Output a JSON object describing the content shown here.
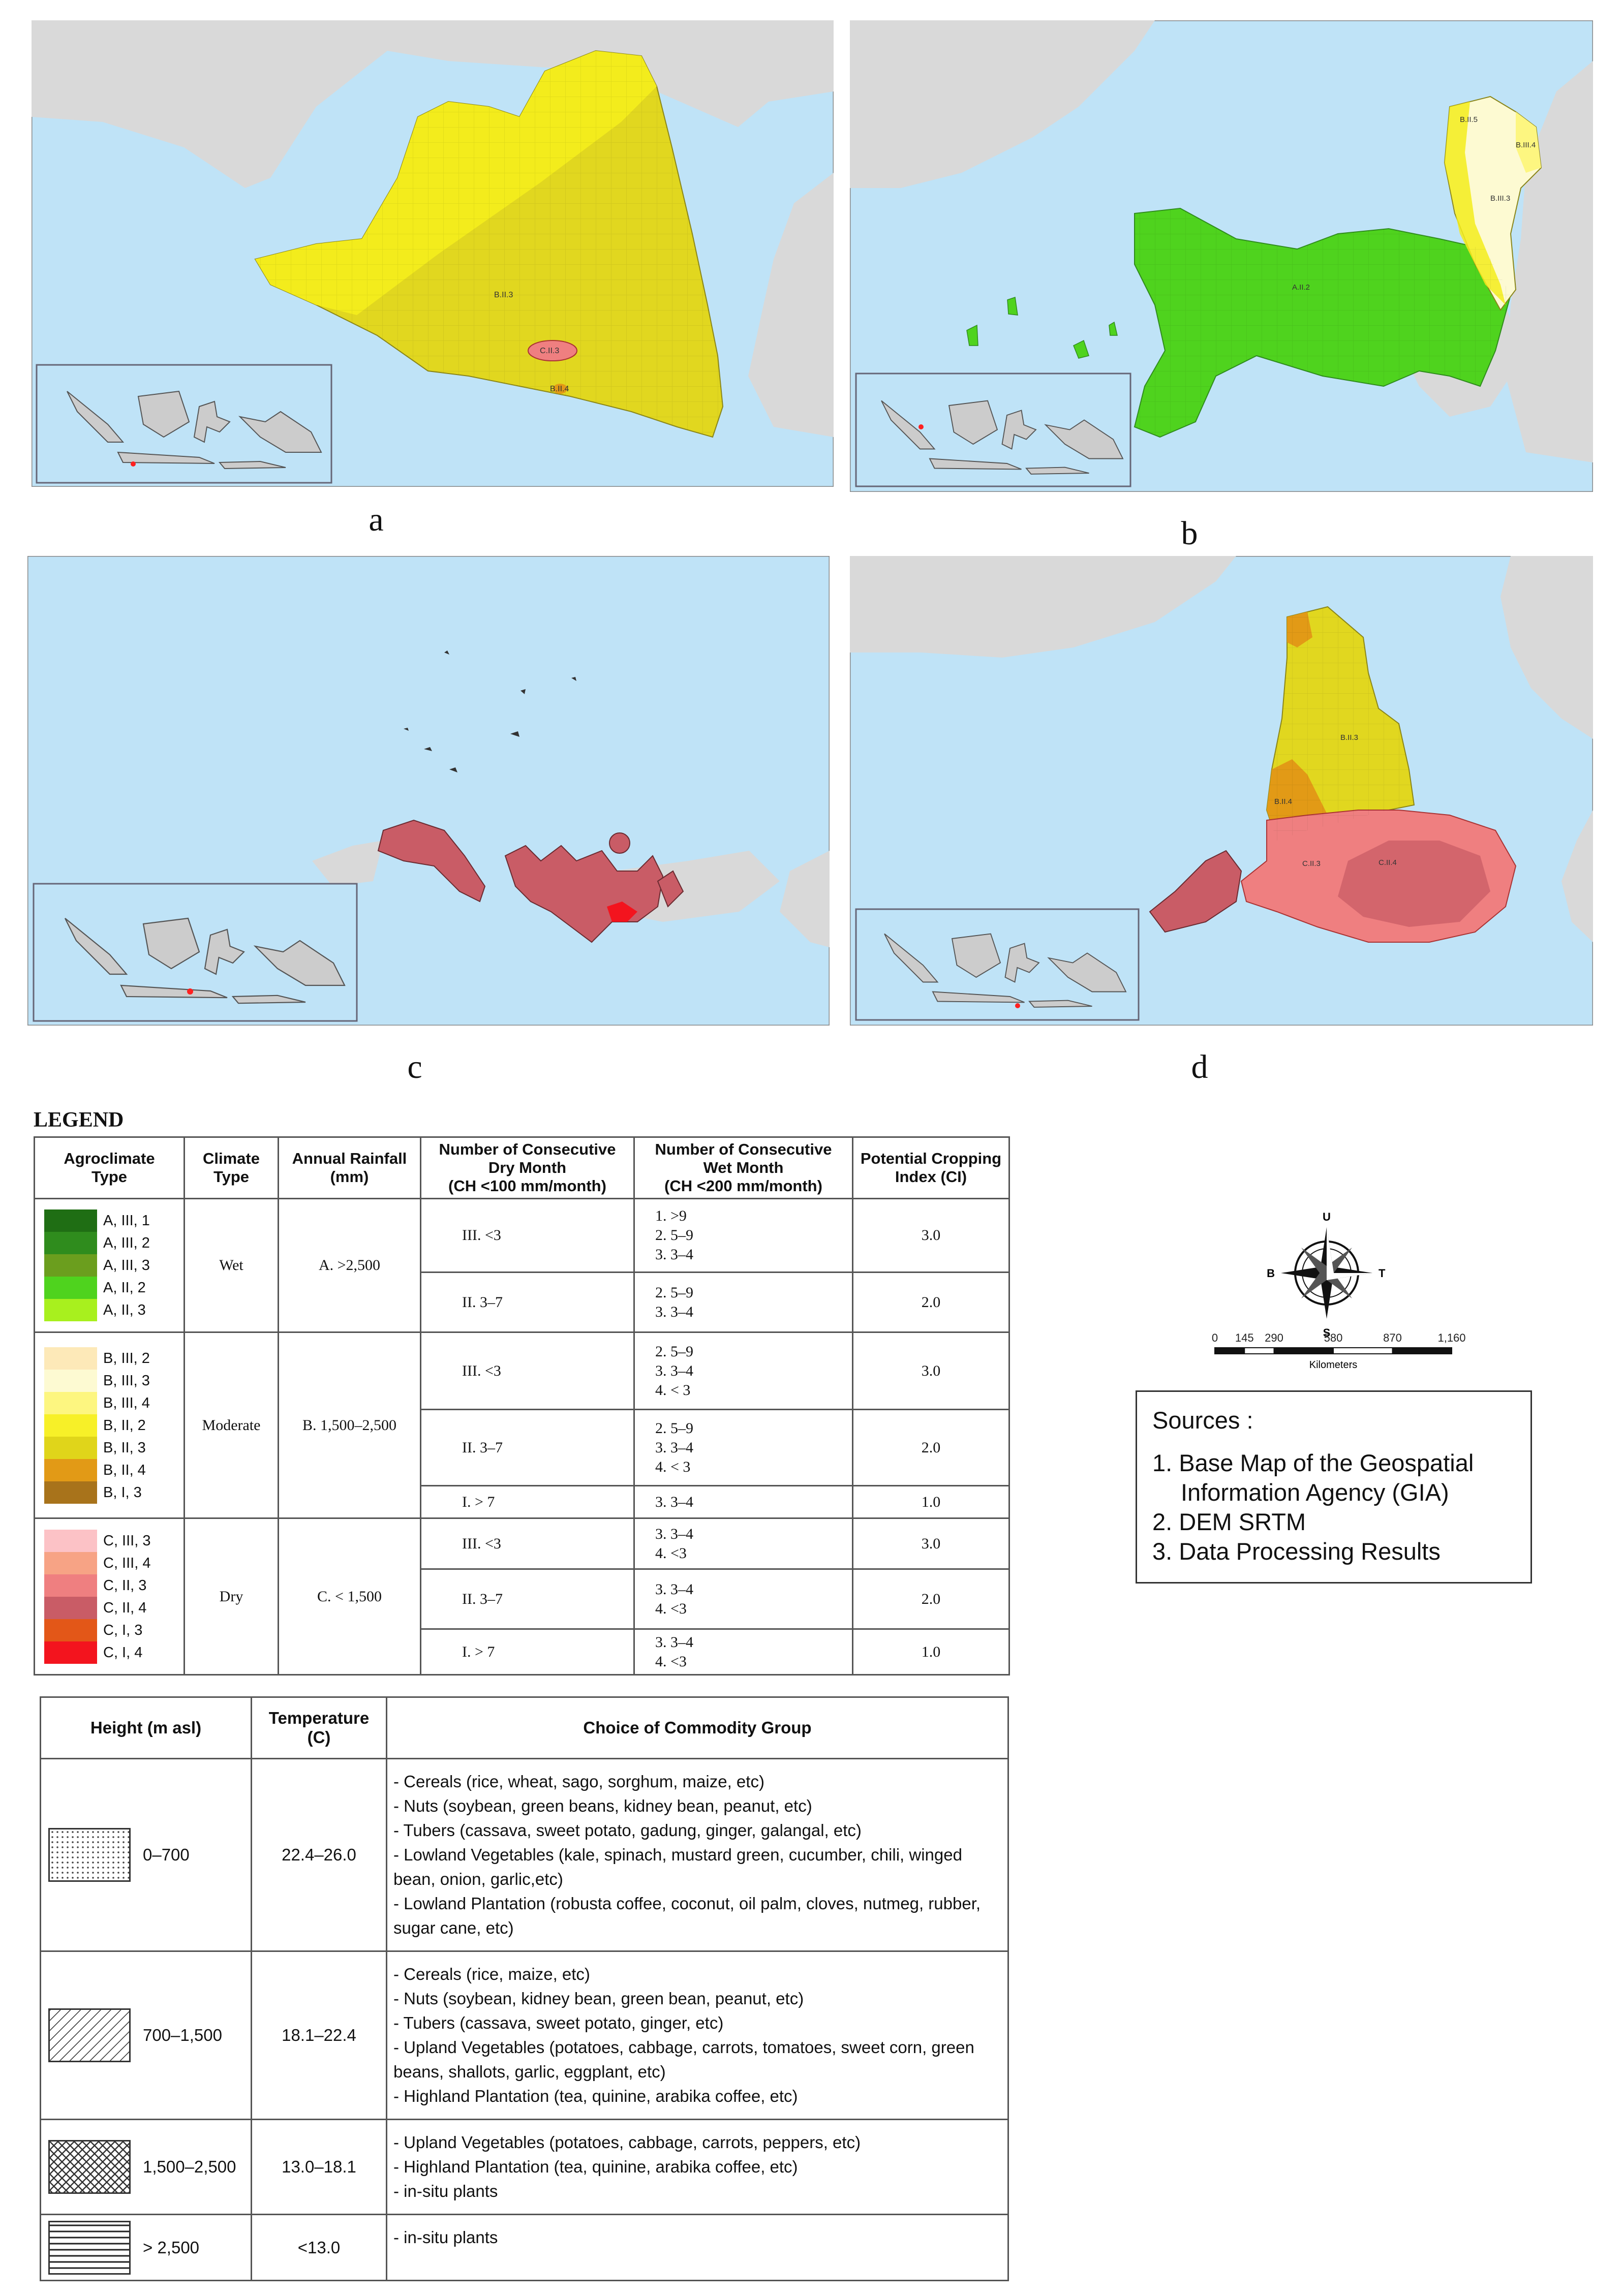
{
  "panels": [
    {
      "letter": "a",
      "labels": [
        "B.II.3",
        "C.II.3",
        "B.II.4"
      ]
    },
    {
      "letter": "b",
      "labels": [
        "B.II.5",
        "B.III.4",
        "B.III.3",
        "A.II.2"
      ]
    },
    {
      "letter": "c",
      "labels": []
    },
    {
      "letter": "d",
      "labels": [
        "B.II.3",
        "B.II.4",
        "C.II.3",
        "C.II.4"
      ]
    }
  ],
  "legend_title": "LEGEND",
  "agro_table": {
    "headers": {
      "agro": [
        "Agroclimate",
        "Type"
      ],
      "climate": [
        "Climate",
        "Type"
      ],
      "rain": [
        "Annual Rainfall",
        "(mm)"
      ],
      "dry": [
        "Number of Consecutive",
        "Dry Month",
        "(CH <100 mm/month)"
      ],
      "wet": [
        "Number of Consecutive",
        "Wet Month",
        "(CH <200 mm/month)"
      ],
      "ci": [
        "Potential Cropping",
        "Index (CI)"
      ]
    },
    "groups": [
      {
        "climate": "Wet",
        "rainfall": "A. >2,500",
        "swatches": [
          {
            "label": "A, III, 1",
            "color": "#1f6e14"
          },
          {
            "label": "A, III, 2",
            "color": "#2f8c1d"
          },
          {
            "label": "A, III, 3",
            "color": "#6b9e1e"
          },
          {
            "label": "A, II, 2",
            "color": "#4fd31e"
          },
          {
            "label": "A, II, 3",
            "color": "#a8f01e"
          }
        ],
        "rows": [
          {
            "dry": "III. <3",
            "wet": [
              "1. >9",
              "2. 5–9",
              "3. 3–4"
            ],
            "ci": "3.0"
          },
          {
            "dry": "II. 3–7",
            "wet": [
              "2. 5–9",
              "3. 3–4"
            ],
            "ci": "2.0"
          }
        ]
      },
      {
        "climate": "Moderate",
        "rainfall": "B. 1,500–2,500",
        "swatches": [
          {
            "label": "B, III, 2",
            "color": "#fde9b8"
          },
          {
            "label": "B, III, 3",
            "color": "#fdfad2"
          },
          {
            "label": "B, III, 4",
            "color": "#fdf680"
          },
          {
            "label": "B, II, 2",
            "color": "#f7f028"
          },
          {
            "label": "B, II, 3",
            "color": "#e0d51a"
          },
          {
            "label": "B, II, 4",
            "color": "#e29a16"
          },
          {
            "label": "B, I, 3",
            "color": "#a8731b"
          }
        ],
        "rows": [
          {
            "dry": "III. <3",
            "wet": [
              "2. 5–9",
              "3. 3–4",
              "4. < 3"
            ],
            "ci": "3.0"
          },
          {
            "dry": "II. 3–7",
            "wet": [
              "2. 5–9",
              "3. 3–4",
              "4. < 3"
            ],
            "ci": "2.0"
          },
          {
            "dry": "I. > 7",
            "wet": [
              "3. 3–4"
            ],
            "ci": "1.0"
          }
        ]
      },
      {
        "climate": "Dry",
        "rainfall": "C. < 1,500",
        "swatches": [
          {
            "label": "C, III, 3",
            "color": "#fcc2c6"
          },
          {
            "label": "C, III, 4",
            "color": "#f7a385"
          },
          {
            "label": "C, II, 3",
            "color": "#ef7f80"
          },
          {
            "label": "C, II, 4",
            "color": "#c95c66"
          },
          {
            "label": "C, I, 3",
            "color": "#e35718"
          },
          {
            "label": "C, I, 4",
            "color": "#f3141e"
          }
        ],
        "rows": [
          {
            "dry": "III. <3",
            "wet": [
              "3. 3–4",
              "4. <3"
            ],
            "ci": "3.0"
          },
          {
            "dry": "II. 3–7",
            "wet": [
              "3. 3–4",
              "4. <3"
            ],
            "ci": "2.0"
          },
          {
            "dry": "I. > 7",
            "wet": [
              "3. 3–4",
              "4. <3"
            ],
            "ci": "1.0"
          }
        ]
      }
    ]
  },
  "commodity_table": {
    "headers": {
      "height": "Height (m asl)",
      "temp": [
        "Temperature",
        "(C)"
      ],
      "choice": "Choice of Commodity Group"
    },
    "rows": [
      {
        "height": "0–700",
        "pattern": "dots",
        "temp": "22.4–26.0",
        "items": [
          "- Cereals (rice, wheat, sago, sorghum, maize, etc)",
          "- Nuts (soybean, green beans, kidney bean, peanut, etc)",
          "- Tubers (cassava, sweet potato, gadung, ginger, galangal, etc)",
          "- Lowland Vegetables (kale, spinach, mustard green, cucumber, chili, winged bean, onion, garlic,etc)",
          "- Lowland Plantation (robusta coffee, coconut, oil palm, cloves, nutmeg, rubber, sugar cane, etc)"
        ]
      },
      {
        "height": "700–1,500",
        "pattern": "diagonal",
        "temp": "18.1–22.4",
        "items": [
          "- Cereals (rice, maize, etc)",
          "- Nuts (soybean, kidney bean, green bean, peanut, etc)",
          "- Tubers (cassava, sweet potato, ginger, etc)",
          "- Upland Vegetables (potatoes, cabbage, carrots, tomatoes, sweet corn, green beans, shallots, garlic, eggplant, etc)",
          "- Highland Plantation (tea, quinine, arabika coffee, etc)"
        ]
      },
      {
        "height": "1,500–2,500",
        "pattern": "crosshatch",
        "temp": "13.0–18.1",
        "items": [
          "- Upland Vegetables (potatoes, cabbage, carrots, peppers, etc)",
          "- Highland Plantation (tea, quinine, arabika coffee, etc)",
          "- in-situ plants"
        ]
      },
      {
        "height": "> 2,500",
        "pattern": "horizontal",
        "temp": "<13.0",
        "items": [
          "- in-situ plants"
        ]
      }
    ]
  },
  "compass": {
    "n": "U",
    "s": "S",
    "e": "T",
    "w": "B"
  },
  "scale": {
    "ticks": [
      "0",
      "145",
      "290",
      "580",
      "870",
      "1,160"
    ],
    "unit": "Kilometers"
  },
  "sources": {
    "title": "Sources :",
    "items": [
      "1. Base Map of the Geospatial Information Agency (GIA)",
      "2. DEM SRTM",
      "3. Data Processing Results"
    ]
  },
  "colors": {
    "sea": "#bfe3f7",
    "land": "#d9d9d9",
    "inset": "#cccccc"
  }
}
